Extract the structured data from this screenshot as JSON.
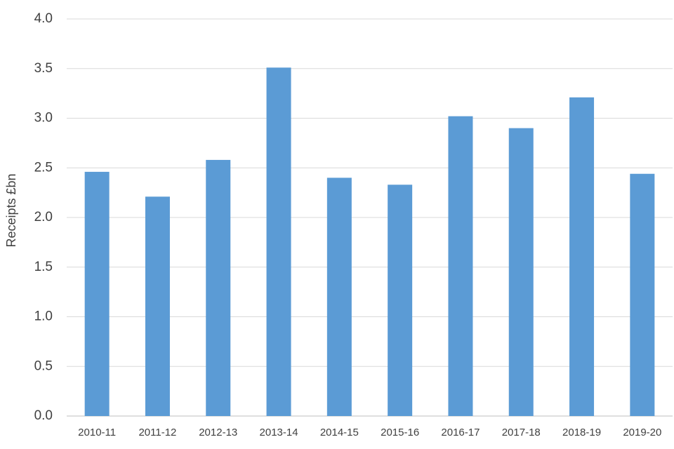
{
  "chart_data": {
    "type": "bar",
    "y_label": "Receipts £bn",
    "categories": [
      "2010-11",
      "2011-12",
      "2012-13",
      "2013-14",
      "2014-15",
      "2015-16",
      "2016-17",
      "2017-18",
      "2018-19",
      "2019-20"
    ],
    "values": [
      2.46,
      2.21,
      2.58,
      3.51,
      2.4,
      2.33,
      3.02,
      2.9,
      3.21,
      2.44
    ],
    "color": "#5b9bd5",
    "ylim": [
      0,
      4
    ],
    "yticks": [
      {
        "value": 0,
        "label": "0.0"
      },
      0.5,
      {
        "value": 1,
        "label": "1.0"
      },
      1.5,
      {
        "value": 2,
        "label": "2.0"
      },
      2.5,
      {
        "value": 3,
        "label": "3.0"
      },
      3.5,
      {
        "value": 4,
        "label": "4.0"
      }
    ],
    "grid": true
  }
}
